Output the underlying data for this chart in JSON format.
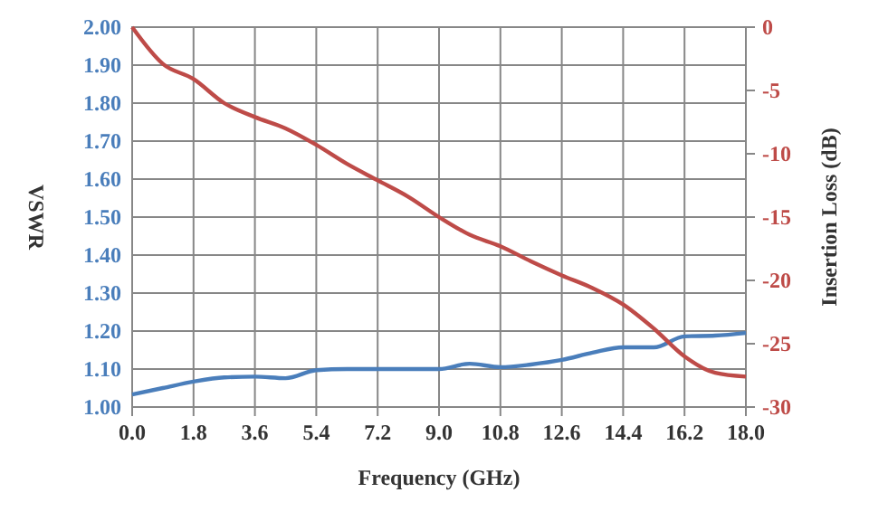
{
  "chart_data": {
    "type": "line",
    "xlabel": "Frequency (GHz)",
    "ylabel": "VSWR",
    "y2label": "Insertion Loss (dB)",
    "xlim": [
      0,
      18
    ],
    "xticks": [
      {
        "value": 0,
        "label": "0.0"
      },
      {
        "value": 1.8,
        "label": "1.8"
      },
      {
        "value": 3.6,
        "label": "3.6"
      },
      {
        "value": 5.4,
        "label": "5.4"
      },
      {
        "value": 7.2,
        "label": "7.2"
      },
      {
        "value": 9,
        "label": "9.0"
      },
      {
        "value": 10.8,
        "label": "10.8"
      },
      {
        "value": 12.6,
        "label": "12.6"
      },
      {
        "value": 14.4,
        "label": "14.4"
      },
      {
        "value": 16.2,
        "label": "16.2"
      },
      {
        "value": 18,
        "label": "18.0"
      }
    ],
    "ylim": [
      1,
      2
    ],
    "yticks": [
      {
        "value": 1,
        "label": "1.00"
      },
      {
        "value": 1.1,
        "label": "1.10"
      },
      {
        "value": 1.2,
        "label": "1.20"
      },
      {
        "value": 1.3,
        "label": "1.30"
      },
      {
        "value": 1.4,
        "label": "1.40"
      },
      {
        "value": 1.5,
        "label": "1.50"
      },
      {
        "value": 1.6,
        "label": "1.60"
      },
      {
        "value": 1.7,
        "label": "1.70"
      },
      {
        "value": 1.8,
        "label": "1.80"
      },
      {
        "value": 1.9,
        "label": "1.90"
      },
      {
        "value": 2,
        "label": "2.00"
      }
    ],
    "y2lim": [
      -30,
      0
    ],
    "y2ticks": [
      -30,
      -25,
      -20,
      -15,
      -10,
      -5,
      0
    ],
    "grid": true,
    "marker": "none",
    "line_style": "solid",
    "series": [
      {
        "color": "#4a7ebb",
        "x": [
          0,
          0.9,
          1.8,
          2.7,
          3.6,
          4.5,
          5.4,
          6.3,
          7.2,
          8.1,
          9,
          9.9,
          10.8,
          11.7,
          12.6,
          13.5,
          14.4,
          15.3,
          16.2,
          17.1,
          18
        ],
        "values": [
          1.033,
          1.05,
          1.067,
          1.078,
          1.08,
          1.076,
          1.097,
          1.1,
          1.1,
          1.1,
          1.1,
          1.114,
          1.105,
          1.112,
          1.124,
          1.143,
          1.157,
          1.157,
          1.186,
          1.188,
          1.195
        ]
      },
      {
        "color": "#be4b48",
        "axis": "y2",
        "x": [
          0,
          0.9,
          1.8,
          2.7,
          3.6,
          4.5,
          5.4,
          6.3,
          7.2,
          8.1,
          9,
          9.9,
          10.8,
          11.7,
          12.6,
          13.5,
          14.4,
          15.3,
          16.2,
          17.1,
          18
        ],
        "values": [
          0,
          -2.9,
          -4.1,
          -6,
          -7.1,
          -8,
          -9.3,
          -10.8,
          -12.1,
          -13.4,
          -15,
          -16.4,
          -17.3,
          -18.5,
          -19.6,
          -20.6,
          -21.9,
          -23.8,
          -26,
          -27.3,
          -27.6
        ]
      }
    ]
  }
}
